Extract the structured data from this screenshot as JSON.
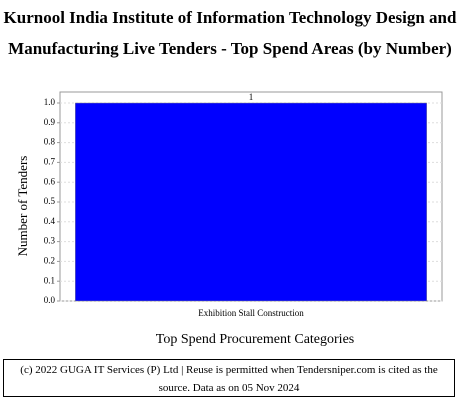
{
  "chart_data": {
    "type": "bar",
    "title": "Kurnool India Institute of Information Technology Design and Manufacturing Live Tenders - Top Spend Areas (by Number)",
    "x_label": "Top Spend Procurement Categories",
    "y_label": "Number of Tenders",
    "categories": [
      "Exhibition Stall Construction"
    ],
    "values": [
      1
    ],
    "color": "#0000ff",
    "ylim": [
      0,
      1
    ],
    "yticks": [
      {
        "value": 0,
        "label": "0.0"
      },
      0.1,
      0.2,
      0.3,
      0.4,
      0.5,
      0.6,
      0.7,
      0.8,
      0.9,
      {
        "value": 1,
        "label": "1.0"
      }
    ],
    "grid": true,
    "footer": "(c) 2022 GUGA IT Services (P) Ltd | Reuse is permitted when Tendersniper.com is cited as the source. Data as on 05 Nov 2024"
  }
}
